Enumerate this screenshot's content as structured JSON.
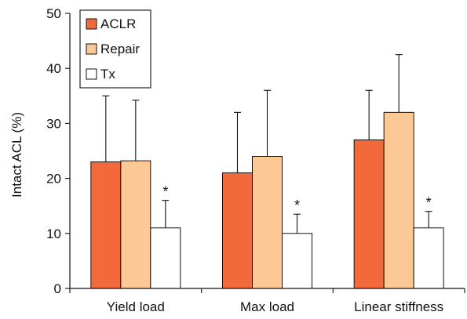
{
  "chart_data": {
    "type": "bar",
    "title": "",
    "xlabel": "",
    "ylabel": "Intact ACL (%)",
    "ylim": [
      0,
      50
    ],
    "yticks": [
      0,
      10,
      20,
      30,
      40,
      50
    ],
    "grid": false,
    "legend_position": "top-left",
    "categories": [
      "Yield load",
      "Max load",
      "Linear stiffness"
    ],
    "series": [
      {
        "name": "ACLR",
        "color": "#f26a3c",
        "values": [
          23,
          21,
          27
        ],
        "error_upper": [
          35,
          32,
          36
        ]
      },
      {
        "name": "Repair",
        "color": "#fbc896",
        "values": [
          23.2,
          24,
          32
        ],
        "error_upper": [
          34.2,
          36,
          42.5
        ]
      },
      {
        "name": "Tx",
        "color": "#ffffff",
        "values": [
          11,
          10,
          11
        ],
        "error_upper": [
          16,
          13.5,
          14
        ],
        "annotation": "*"
      }
    ]
  }
}
